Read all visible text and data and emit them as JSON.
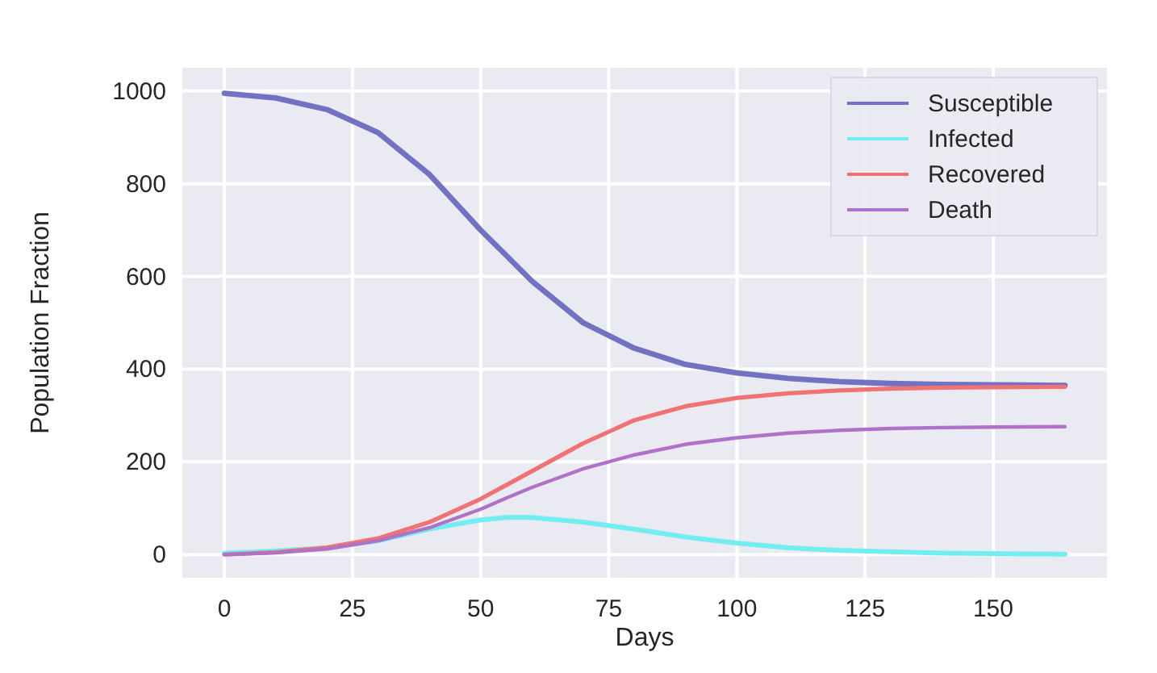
{
  "chart_data": {
    "type": "line",
    "xlabel": "Days",
    "ylabel": "Population Fraction",
    "x": [
      0,
      10,
      20,
      30,
      40,
      50,
      55,
      60,
      70,
      80,
      90,
      100,
      110,
      120,
      130,
      140,
      150,
      164
    ],
    "series": [
      {
        "name": "Susceptible",
        "color": "#7272c2",
        "values": [
          995,
          985,
          960,
          910,
          820,
          700,
          645,
          590,
          500,
          445,
          410,
          392,
          380,
          373,
          369,
          367,
          366,
          365
        ]
      },
      {
        "name": "Infected",
        "color": "#72eef0",
        "values": [
          3,
          8,
          15,
          30,
          55,
          75,
          80,
          80,
          70,
          55,
          38,
          25,
          15,
          9,
          6,
          3,
          2,
          1
        ]
      },
      {
        "name": "Recovered",
        "color": "#f07272",
        "values": [
          0,
          5,
          15,
          35,
          70,
          120,
          150,
          180,
          240,
          290,
          320,
          338,
          348,
          354,
          358,
          360,
          361,
          362
        ]
      },
      {
        "name": "Death",
        "color": "#b072c8",
        "values": [
          0,
          4,
          12,
          30,
          58,
          98,
          122,
          145,
          185,
          215,
          238,
          252,
          262,
          268,
          272,
          274,
          275,
          276
        ]
      }
    ],
    "xlim": [
      -8.2,
      172.2
    ],
    "ylim": [
      -50,
      1050
    ],
    "xticks": [
      0,
      25,
      50,
      75,
      100,
      125,
      150
    ],
    "yticks": [
      0,
      200,
      400,
      600,
      800,
      1000
    ],
    "grid": true,
    "legend": "top right",
    "line_style": "solid",
    "marker": "none"
  }
}
